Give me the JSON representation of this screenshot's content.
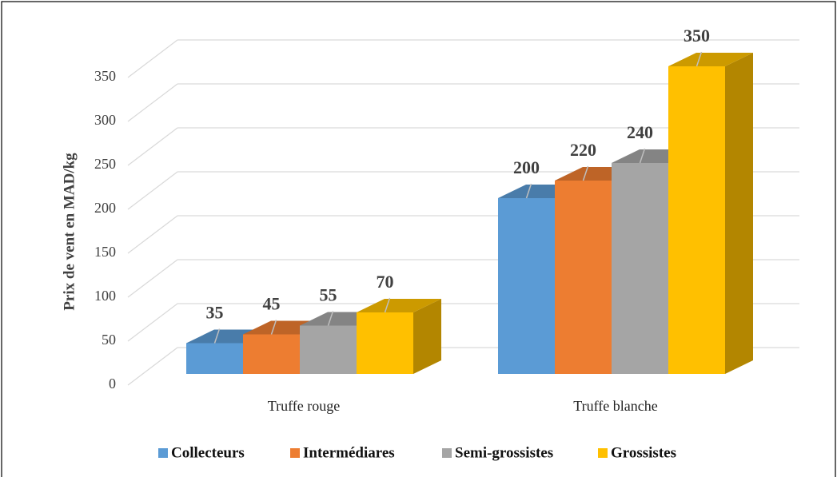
{
  "chart_data": {
    "type": "bar3d",
    "y_label": "Prix de vent en MAD/kg",
    "categories": [
      "Truffe rouge",
      "Truffe blanche"
    ],
    "series": [
      {
        "name": "Collecteurs",
        "color": "#5B9BD5",
        "values": [
          35,
          200
        ]
      },
      {
        "name": "Intermédiares",
        "color": "#ED7D31",
        "values": [
          45,
          220
        ]
      },
      {
        "name": "Semi-grossistes",
        "color": "#A5A5A5",
        "values": [
          55,
          240
        ]
      },
      {
        "name": "Grossistes",
        "color": "#FFC000",
        "values": [
          70,
          350
        ]
      }
    ],
    "ylim": [
      0,
      350
    ],
    "yticks": [
      0,
      50,
      100,
      150,
      200,
      250,
      300,
      350
    ],
    "grid": true,
    "legend": "bottom"
  }
}
